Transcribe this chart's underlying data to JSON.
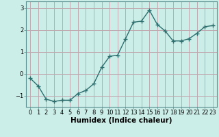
{
  "x": [
    0,
    1,
    2,
    3,
    4,
    5,
    6,
    7,
    8,
    9,
    10,
    11,
    12,
    13,
    14,
    15,
    16,
    17,
    18,
    19,
    20,
    21,
    22,
    23
  ],
  "y": [
    -0.2,
    -0.55,
    -1.15,
    -1.25,
    -1.2,
    -1.2,
    -0.9,
    -0.75,
    -0.45,
    0.3,
    0.8,
    0.85,
    1.6,
    2.35,
    2.4,
    2.9,
    2.25,
    1.95,
    1.5,
    1.5,
    1.6,
    1.85,
    2.15,
    2.2
  ],
  "line_color": "#2d6e6e",
  "marker": "+",
  "marker_size": 4,
  "linewidth": 1.0,
  "xlabel": "Humidex (Indice chaleur)",
  "ylim": [
    -1.5,
    3.3
  ],
  "xlim": [
    -0.5,
    23.5
  ],
  "yticks": [
    -1,
    0,
    1,
    2,
    3
  ],
  "xtick_labels": [
    "0",
    "1",
    "2",
    "3",
    "4",
    "5",
    "6",
    "7",
    "8",
    "9",
    "10",
    "11",
    "12",
    "13",
    "14",
    "15",
    "16",
    "17",
    "18",
    "19",
    "20",
    "21",
    "22",
    "23"
  ],
  "bg_color": "#cceee8",
  "grid_color": "#c0a8b0",
  "figsize": [
    3.2,
    2.0
  ],
  "dpi": 100,
  "xlabel_fontsize": 7.5,
  "tick_fontsize": 6.0
}
